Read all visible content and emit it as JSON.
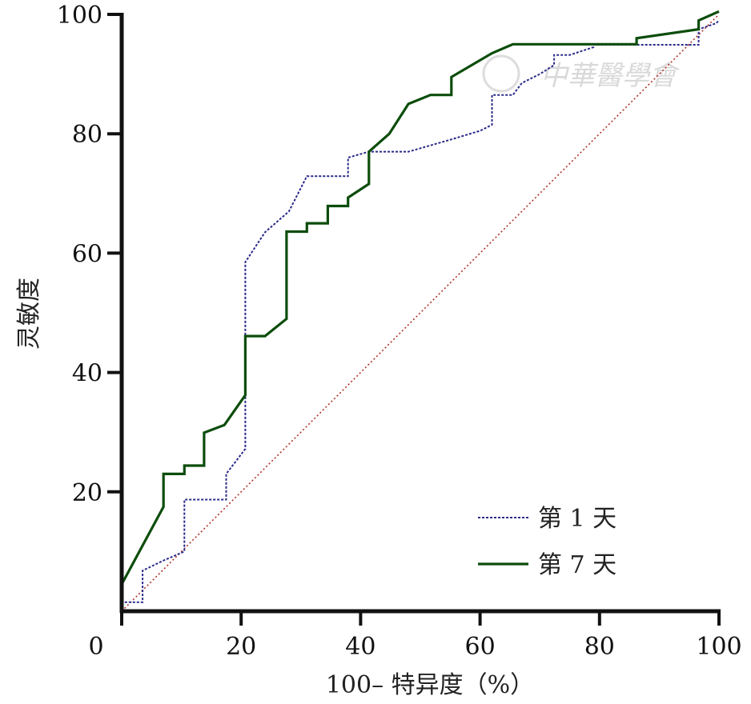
{
  "watermark": "中華醫學會",
  "chart_data": {
    "type": "line",
    "title": "",
    "xlabel": "100– 特异度（%）",
    "ylabel": "灵敏度",
    "xlim": [
      0,
      100
    ],
    "ylim": [
      0,
      100
    ],
    "x_ticks": [
      "0",
      "20",
      "40",
      "60",
      "80",
      "100"
    ],
    "y_ticks": [
      "20",
      "40",
      "60",
      "80",
      "100"
    ],
    "grid": false,
    "legend_position": "bottom-right",
    "reference_line": {
      "x": [
        0,
        100
      ],
      "y": [
        0,
        100
      ],
      "color": "#b0302a"
    },
    "series": [
      {
        "name": "第 1 天",
        "color": "#2a2a8a",
        "style": "dotted",
        "x": [
          0,
          0,
          3.5,
          3.5,
          7,
          10.5,
          10.5,
          17.5,
          17.5,
          20.7,
          20.7,
          20.7,
          24,
          28,
          31,
          37.9,
          37.9,
          41.4,
          48,
          55,
          60,
          62,
          62,
          65.5,
          67,
          70,
          72.4,
          72.4,
          75,
          79,
          79,
          86,
          96.6,
          96.6,
          99.5,
          100
        ],
        "y": [
          0,
          1.5,
          1.5,
          6.8,
          8.5,
          10,
          18.7,
          18.7,
          23,
          27.2,
          36,
          58.5,
          63.5,
          67,
          72.9,
          72.9,
          76,
          77,
          77,
          79,
          80.5,
          81.5,
          86.5,
          86.5,
          88.5,
          90,
          91.5,
          93.2,
          93.2,
          94.5,
          94.9,
          94.9,
          94.9,
          97.5,
          98.5,
          99
        ]
      },
      {
        "name": "第 7 天",
        "color": "#0c4d0c",
        "style": "solid",
        "x": [
          0,
          3.5,
          7,
          7,
          10.5,
          10.5,
          13.8,
          13.8,
          17.2,
          20.7,
          20.7,
          24,
          27.6,
          27.6,
          31,
          31,
          34.5,
          34.5,
          37.9,
          37.9,
          41.4,
          41.4,
          44.8,
          48,
          51.7,
          55.2,
          55.2,
          58.6,
          62,
          65.5,
          86.2,
          86.2,
          96.6,
          96.6,
          100
        ],
        "y": [
          4.5,
          11,
          17.5,
          23,
          23,
          24.4,
          24.4,
          29.9,
          31.2,
          36.2,
          46.1,
          46.1,
          49,
          63.6,
          63.6,
          65,
          65,
          67.9,
          67.9,
          69.3,
          71.6,
          77,
          80,
          85,
          86.5,
          86.5,
          89.5,
          91.5,
          93.5,
          95,
          95,
          96,
          97.5,
          99,
          100.5
        ]
      }
    ]
  }
}
